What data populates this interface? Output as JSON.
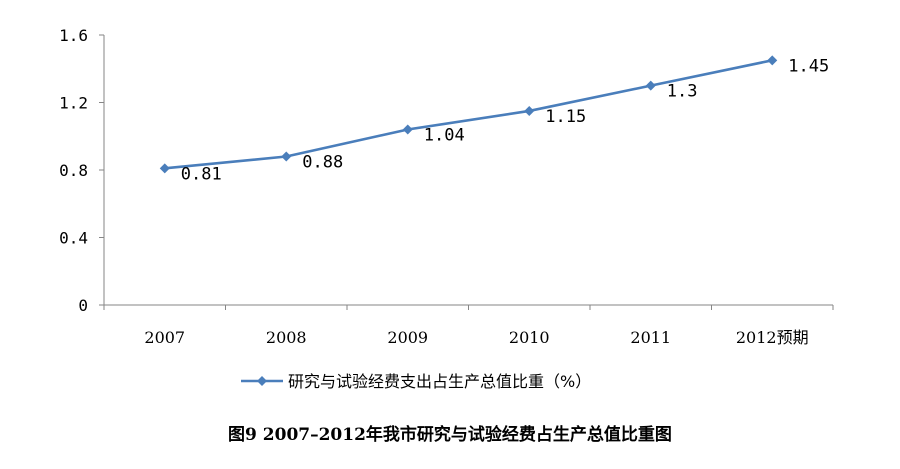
{
  "chart_data": {
    "type": "line",
    "categories": [
      "2007",
      "2008",
      "2009",
      "2010",
      "2011",
      "2012预期"
    ],
    "series": [
      {
        "name": "研究与试验经费支出占生产总值比重（%）",
        "values": [
          0.81,
          0.88,
          1.04,
          1.15,
          1.3,
          1.45
        ]
      }
    ],
    "data_labels": [
      "0.81",
      "0.88",
      "1.04",
      "1.15",
      "1.3",
      "1.45"
    ],
    "y_ticks": [
      "0",
      "0.4",
      "0.8",
      "1.2",
      "1.6"
    ],
    "ylim": [
      0,
      1.6
    ],
    "grid": false,
    "legend_position": "bottom",
    "caption": "图9   2007–2012年我市研究与试验经费占生产总值比重图",
    "line_color": "#4A7EBB"
  }
}
